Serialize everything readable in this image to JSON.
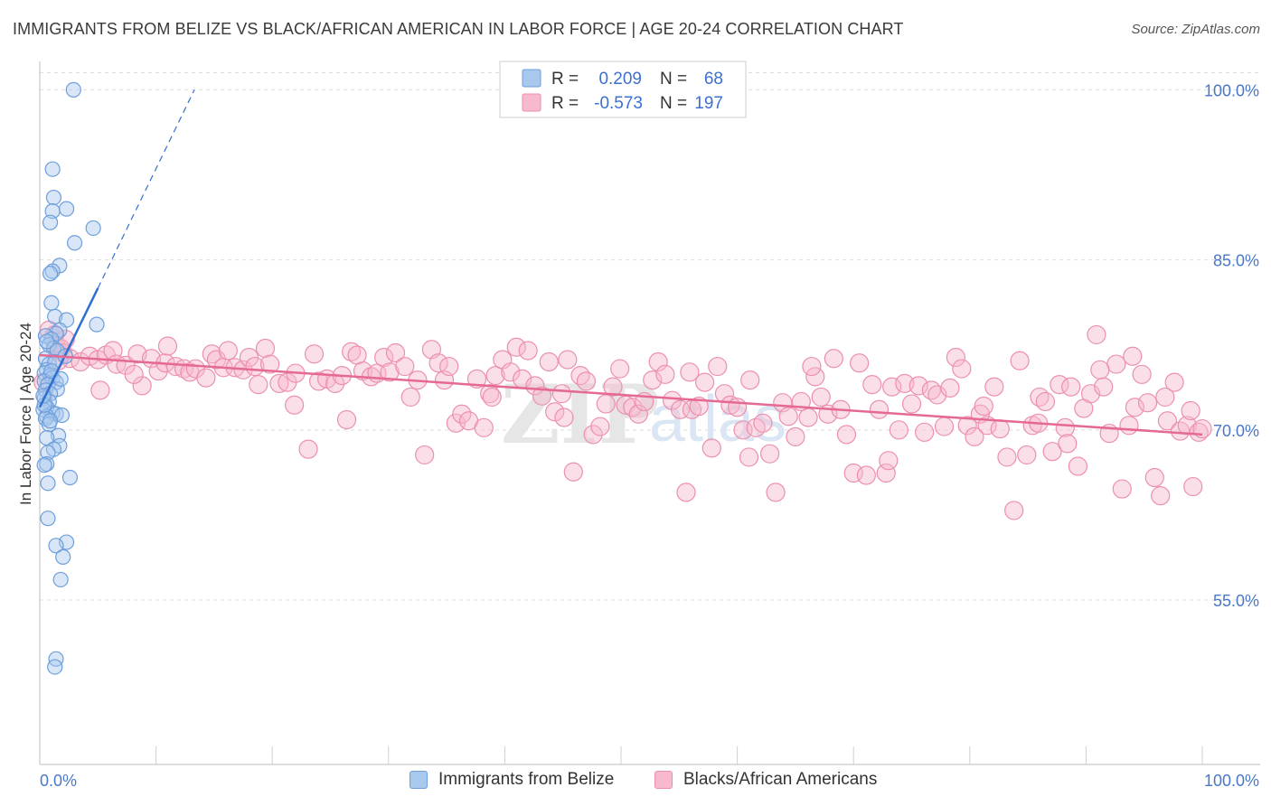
{
  "header": {
    "title": "IMMIGRANTS FROM BELIZE VS BLACK/AFRICAN AMERICAN IN LABOR FORCE | AGE 20-24 CORRELATION CHART",
    "source": "Source: ZipAtlas.com"
  },
  "colors": {
    "blue_fill": "#a9c8ee",
    "blue_stroke": "#6d9fdc",
    "blue_line": "#2f6fcf",
    "pink_fill": "#f6b9cd",
    "pink_stroke": "#ec8fae",
    "pink_line": "#e46a94",
    "axis_label": "#4a78c8",
    "grid": "#dddddd"
  },
  "legend": {
    "rows": [
      {
        "r_label": "R =",
        "r_value": "0.209",
        "n_label": "N =",
        "n_value": "68",
        "series": "belize"
      },
      {
        "r_label": "R =",
        "r_value": "-0.573",
        "n_label": "N =",
        "n_value": "197",
        "series": "black"
      }
    ]
  },
  "bottom_legend": {
    "belize": "Immigrants from Belize",
    "black": "Blacks/African Americans"
  },
  "watermark": {
    "zip": "ZIP",
    "atlas": "atlas"
  },
  "chart_data": {
    "type": "scatter",
    "title": "IMMIGRANTS FROM BELIZE VS BLACK/AFRICAN AMERICAN IN LABOR FORCE | AGE 20-24 CORRELATION CHART",
    "xlabel": "",
    "ylabel": "In Labor Force | Age 20-24",
    "xlim": [
      0,
      100
    ],
    "ylim": [
      40.5,
      102.5
    ],
    "x_tick_labels": [
      "0.0%",
      "100.0%"
    ],
    "y_ticks": [
      55,
      70,
      85,
      100
    ],
    "y_tick_labels": [
      "55.0%",
      "70.0%",
      "85.0%",
      "100.0%"
    ],
    "grid": true,
    "series": [
      {
        "name": "Immigrants from Belize",
        "color": "#a9c8ee",
        "trend": {
          "x0": 0.0,
          "y0": 72.0,
          "x1": 5.0,
          "y1": 82.5,
          "dash_to_x": 13.3,
          "dash_to_y": 100.0
        },
        "points": [
          [
            2.9,
            100.0
          ],
          [
            1.1,
            93.0
          ],
          [
            1.2,
            90.5
          ],
          [
            1.1,
            89.3
          ],
          [
            2.3,
            89.5
          ],
          [
            0.9,
            88.3
          ],
          [
            4.6,
            87.8
          ],
          [
            3.0,
            86.5
          ],
          [
            1.7,
            84.5
          ],
          [
            1.1,
            84.0
          ],
          [
            0.9,
            83.8
          ],
          [
            1.0,
            81.2
          ],
          [
            1.3,
            80.0
          ],
          [
            2.3,
            79.7
          ],
          [
            4.9,
            79.3
          ],
          [
            1.7,
            78.8
          ],
          [
            1.4,
            78.5
          ],
          [
            0.5,
            78.3
          ],
          [
            1.0,
            78.0
          ],
          [
            0.8,
            77.5
          ],
          [
            1.2,
            77.2
          ],
          [
            1.5,
            77.0
          ],
          [
            0.5,
            76.3
          ],
          [
            0.8,
            75.8
          ],
          [
            0.6,
            75.3
          ],
          [
            0.4,
            75.0
          ],
          [
            0.9,
            74.8
          ],
          [
            1.1,
            74.6
          ],
          [
            0.4,
            74.3
          ],
          [
            1.4,
            74.2
          ],
          [
            0.7,
            74.0
          ],
          [
            0.5,
            73.5
          ],
          [
            1.5,
            73.6
          ],
          [
            0.9,
            73.2
          ],
          [
            0.4,
            72.8
          ],
          [
            0.8,
            72.5
          ],
          [
            0.6,
            72.0
          ],
          [
            0.3,
            71.8
          ],
          [
            1.1,
            71.5
          ],
          [
            1.4,
            71.4
          ],
          [
            1.9,
            71.3
          ],
          [
            0.6,
            71.2
          ],
          [
            0.5,
            71.0
          ],
          [
            0.8,
            70.5
          ],
          [
            1.6,
            69.5
          ],
          [
            0.6,
            69.3
          ],
          [
            1.7,
            68.6
          ],
          [
            1.2,
            68.3
          ],
          [
            0.7,
            68.0
          ],
          [
            0.6,
            67.0
          ],
          [
            0.4,
            66.9
          ],
          [
            2.6,
            65.8
          ],
          [
            0.7,
            65.3
          ],
          [
            0.7,
            62.2
          ],
          [
            2.3,
            60.1
          ],
          [
            1.4,
            59.8
          ],
          [
            2.0,
            58.8
          ],
          [
            1.8,
            56.8
          ],
          [
            1.4,
            49.8
          ],
          [
            1.3,
            49.1
          ],
          [
            0.4,
            72.2
          ],
          [
            0.9,
            70.8
          ],
          [
            1.3,
            76.0
          ],
          [
            0.6,
            77.8
          ],
          [
            1.0,
            75.2
          ],
          [
            0.3,
            73.0
          ],
          [
            1.8,
            74.5
          ],
          [
            2.2,
            76.5
          ]
        ]
      },
      {
        "name": "Blacks/African Americans",
        "color": "#f6b9cd",
        "trend": {
          "x0": 0.0,
          "y0": 76.6,
          "x1": 100.0,
          "y1": 69.6
        },
        "points": [
          [
            0.8,
            78.8
          ],
          [
            1.3,
            78.4
          ],
          [
            1.4,
            77.4
          ],
          [
            1.8,
            77.2
          ],
          [
            2.0,
            76.8
          ],
          [
            2.6,
            76.3
          ],
          [
            3.5,
            76.0
          ],
          [
            4.3,
            76.5
          ],
          [
            5.0,
            76.2
          ],
          [
            5.7,
            76.6
          ],
          [
            6.3,
            77.0
          ],
          [
            6.6,
            75.8
          ],
          [
            7.4,
            75.7
          ],
          [
            8.4,
            76.7
          ],
          [
            8.8,
            73.9
          ],
          [
            9.6,
            76.3
          ],
          [
            10.2,
            75.2
          ],
          [
            10.8,
            75.9
          ],
          [
            11.0,
            77.4
          ],
          [
            11.7,
            75.6
          ],
          [
            12.4,
            75.4
          ],
          [
            12.9,
            75.1
          ],
          [
            13.4,
            75.4
          ],
          [
            14.3,
            74.6
          ],
          [
            14.8,
            76.7
          ],
          [
            15.2,
            76.2
          ],
          [
            15.8,
            75.5
          ],
          [
            16.2,
            77.0
          ],
          [
            16.8,
            75.5
          ],
          [
            17.5,
            75.3
          ],
          [
            18.0,
            76.4
          ],
          [
            18.5,
            75.6
          ],
          [
            19.4,
            77.2
          ],
          [
            19.8,
            75.8
          ],
          [
            20.6,
            74.1
          ],
          [
            21.3,
            74.2
          ],
          [
            22.0,
            75.0
          ],
          [
            23.1,
            68.3
          ],
          [
            23.6,
            76.7
          ],
          [
            24.0,
            74.3
          ],
          [
            24.7,
            74.5
          ],
          [
            25.4,
            74.1
          ],
          [
            26.0,
            74.8
          ],
          [
            26.8,
            76.9
          ],
          [
            27.3,
            76.6
          ],
          [
            27.8,
            75.2
          ],
          [
            28.5,
            74.7
          ],
          [
            29.0,
            75.0
          ],
          [
            29.6,
            76.4
          ],
          [
            30.1,
            75.1
          ],
          [
            30.6,
            76.8
          ],
          [
            31.4,
            75.6
          ],
          [
            31.9,
            72.9
          ],
          [
            32.5,
            74.4
          ],
          [
            33.1,
            67.8
          ],
          [
            33.7,
            77.1
          ],
          [
            34.3,
            75.9
          ],
          [
            34.8,
            74.4
          ],
          [
            35.2,
            75.6
          ],
          [
            35.8,
            70.6
          ],
          [
            36.3,
            71.4
          ],
          [
            36.9,
            70.8
          ],
          [
            37.6,
            74.5
          ],
          [
            38.2,
            70.2
          ],
          [
            38.7,
            73.2
          ],
          [
            39.2,
            74.8
          ],
          [
            39.8,
            76.2
          ],
          [
            40.5,
            75.1
          ],
          [
            41.0,
            77.3
          ],
          [
            41.5,
            74.5
          ],
          [
            42.0,
            77.0
          ],
          [
            42.6,
            73.9
          ],
          [
            43.2,
            73.0
          ],
          [
            43.8,
            76.0
          ],
          [
            44.3,
            71.6
          ],
          [
            44.9,
            73.2
          ],
          [
            45.4,
            76.2
          ],
          [
            45.9,
            66.3
          ],
          [
            46.5,
            74.8
          ],
          [
            47.0,
            74.3
          ],
          [
            47.6,
            69.6
          ],
          [
            48.2,
            70.3
          ],
          [
            48.7,
            72.3
          ],
          [
            49.3,
            73.8
          ],
          [
            49.9,
            75.4
          ],
          [
            50.4,
            72.2
          ],
          [
            51.0,
            72.0
          ],
          [
            51.5,
            71.4
          ],
          [
            52.0,
            72.5
          ],
          [
            52.7,
            74.4
          ],
          [
            53.2,
            76.0
          ],
          [
            53.8,
            74.9
          ],
          [
            54.4,
            72.6
          ],
          [
            55.1,
            71.8
          ],
          [
            55.6,
            64.5
          ],
          [
            56.1,
            71.8
          ],
          [
            56.7,
            72.1
          ],
          [
            57.2,
            74.2
          ],
          [
            57.8,
            68.4
          ],
          [
            58.3,
            75.6
          ],
          [
            58.9,
            73.2
          ],
          [
            59.4,
            72.2
          ],
          [
            60.0,
            72.0
          ],
          [
            60.5,
            70.0
          ],
          [
            61.1,
            74.4
          ],
          [
            61.6,
            70.2
          ],
          [
            62.2,
            70.6
          ],
          [
            62.8,
            67.9
          ],
          [
            63.3,
            64.5
          ],
          [
            63.9,
            72.4
          ],
          [
            64.4,
            71.2
          ],
          [
            65.0,
            69.4
          ],
          [
            65.5,
            72.5
          ],
          [
            66.1,
            71.1
          ],
          [
            66.7,
            74.7
          ],
          [
            67.2,
            72.9
          ],
          [
            67.8,
            71.4
          ],
          [
            68.3,
            76.3
          ],
          [
            68.9,
            71.8
          ],
          [
            69.4,
            69.6
          ],
          [
            70.0,
            66.2
          ],
          [
            70.5,
            75.9
          ],
          [
            71.1,
            66.0
          ],
          [
            71.6,
            74.0
          ],
          [
            72.2,
            71.8
          ],
          [
            72.8,
            66.2
          ],
          [
            73.3,
            73.8
          ],
          [
            73.9,
            70.0
          ],
          [
            74.4,
            74.1
          ],
          [
            75.0,
            72.3
          ],
          [
            75.6,
            73.9
          ],
          [
            76.1,
            69.8
          ],
          [
            76.7,
            73.5
          ],
          [
            77.2,
            73.1
          ],
          [
            77.8,
            70.3
          ],
          [
            78.3,
            73.7
          ],
          [
            78.8,
            76.4
          ],
          [
            79.3,
            75.4
          ],
          [
            79.8,
            70.4
          ],
          [
            80.4,
            69.4
          ],
          [
            80.9,
            71.4
          ],
          [
            81.5,
            70.4
          ],
          [
            82.1,
            73.8
          ],
          [
            82.6,
            70.1
          ],
          [
            83.2,
            67.6
          ],
          [
            83.8,
            62.9
          ],
          [
            84.3,
            76.1
          ],
          [
            84.9,
            67.8
          ],
          [
            85.4,
            70.4
          ],
          [
            86.0,
            72.9
          ],
          [
            86.5,
            72.5
          ],
          [
            87.1,
            68.1
          ],
          [
            87.7,
            74.0
          ],
          [
            88.2,
            70.2
          ],
          [
            88.7,
            73.8
          ],
          [
            89.3,
            66.8
          ],
          [
            89.8,
            71.9
          ],
          [
            90.4,
            73.2
          ],
          [
            90.9,
            78.4
          ],
          [
            91.5,
            73.8
          ],
          [
            92.0,
            69.7
          ],
          [
            92.6,
            75.8
          ],
          [
            93.1,
            64.8
          ],
          [
            93.7,
            70.4
          ],
          [
            94.2,
            72.0
          ],
          [
            94.8,
            74.9
          ],
          [
            95.3,
            72.4
          ],
          [
            95.9,
            65.8
          ],
          [
            96.4,
            64.2
          ],
          [
            97.0,
            70.8
          ],
          [
            97.6,
            74.2
          ],
          [
            98.1,
            69.9
          ],
          [
            98.7,
            70.4
          ],
          [
            99.2,
            65.0
          ],
          [
            99.7,
            69.8
          ],
          [
            100.0,
            70.1
          ],
          [
            0.3,
            74.2
          ],
          [
            1.6,
            76.1
          ],
          [
            2.2,
            78.0
          ],
          [
            8.1,
            74.9
          ],
          [
            18.8,
            74.0
          ],
          [
            21.9,
            72.2
          ],
          [
            26.4,
            70.9
          ],
          [
            38.9,
            72.9
          ],
          [
            45.1,
            71.1
          ],
          [
            55.9,
            75.1
          ],
          [
            61.0,
            67.6
          ],
          [
            66.4,
            75.6
          ],
          [
            73.0,
            67.3
          ],
          [
            81.2,
            72.1
          ],
          [
            85.9,
            70.6
          ],
          [
            88.4,
            68.8
          ],
          [
            91.2,
            75.3
          ],
          [
            94.0,
            76.5
          ],
          [
            96.8,
            72.9
          ],
          [
            99.0,
            71.7
          ],
          [
            5.2,
            73.5
          ]
        ]
      }
    ]
  }
}
